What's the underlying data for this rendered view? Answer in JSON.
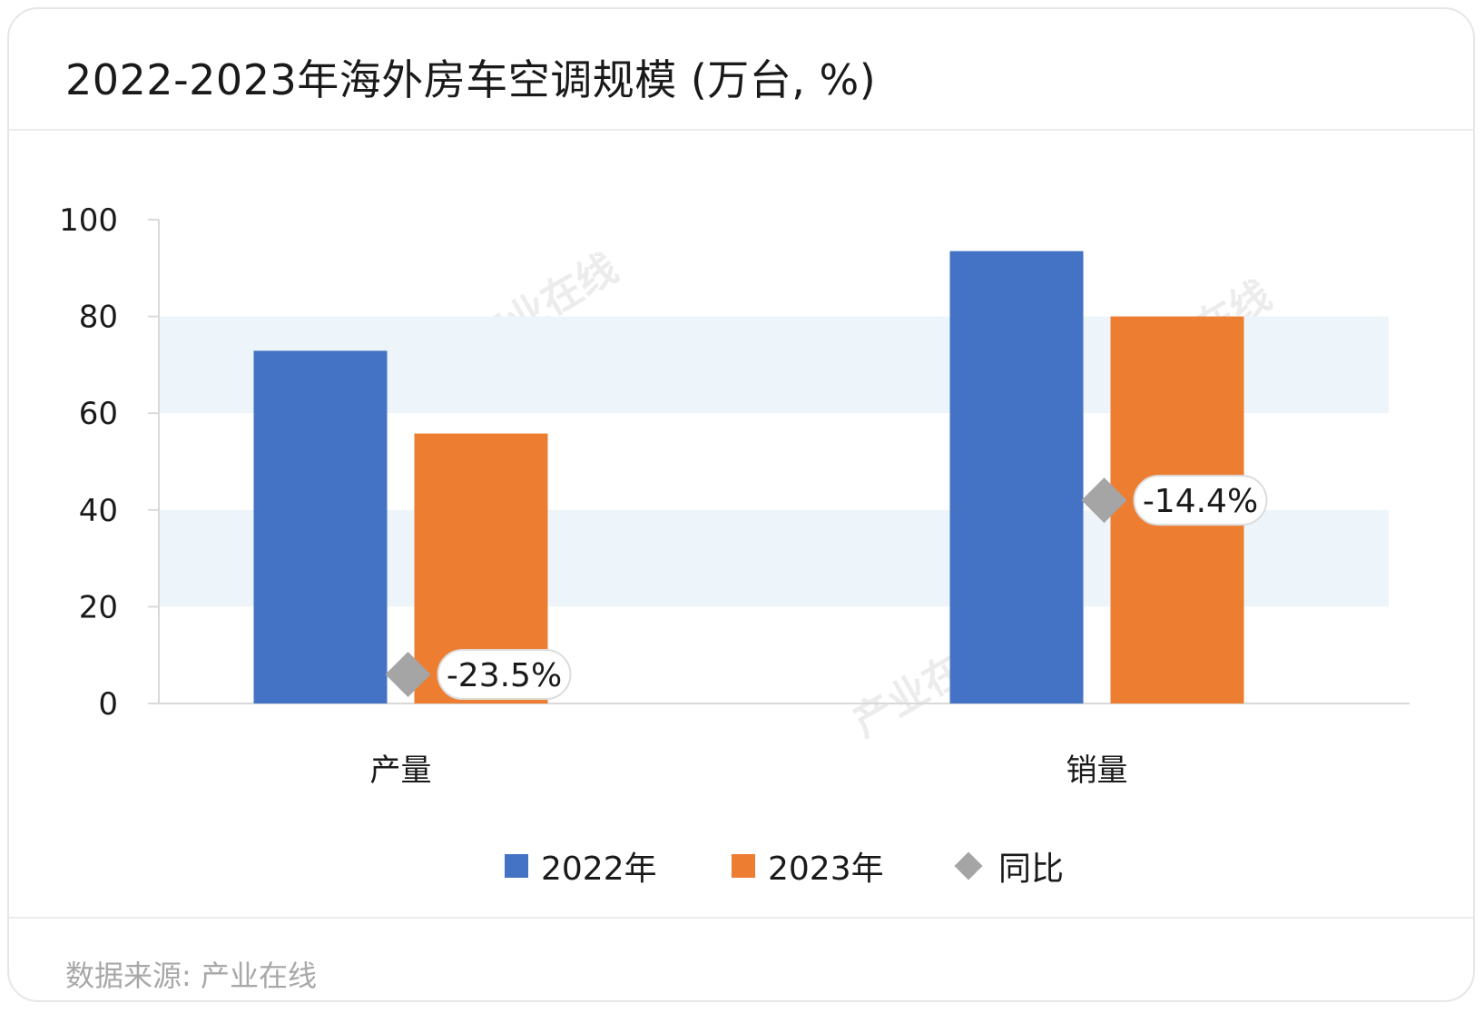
{
  "title": "2022-2023年海外房车空调规模 (万台, %)",
  "source": "数据来源: 产业在线",
  "watermark": "产业在线",
  "colors": {
    "series_2022": "#4472c4",
    "series_2023": "#ed7d31",
    "yoy_marker": "#a5a5a5",
    "band": "#edf5fb"
  },
  "legend": [
    {
      "label": "2022年",
      "marker": "square",
      "color": "#4472c4"
    },
    {
      "label": "2023年",
      "marker": "square",
      "color": "#ed7d31"
    },
    {
      "label": "同比",
      "marker": "diamond",
      "color": "#a5a5a5"
    }
  ],
  "chart_data": {
    "type": "bar",
    "title": "2022-2023年海外房车空调规模 (万台, %)",
    "categories": [
      "产量",
      "销量"
    ],
    "series": [
      {
        "name": "2022年",
        "values": [
          72.9,
          93.5
        ]
      },
      {
        "name": "2023年",
        "values": [
          55.8,
          80.0
        ]
      }
    ],
    "overlay": {
      "name": "同比",
      "type": "scatter",
      "marker": "diamond",
      "values": [
        -23.5,
        -14.4
      ],
      "labels": [
        "-23.5%",
        "-14.4%"
      ]
    },
    "yticks": [
      "0",
      "20",
      "40",
      "60",
      "80",
      "100"
    ],
    "ylim": [
      0,
      100
    ],
    "grid": false,
    "legend_position": "bottom"
  }
}
